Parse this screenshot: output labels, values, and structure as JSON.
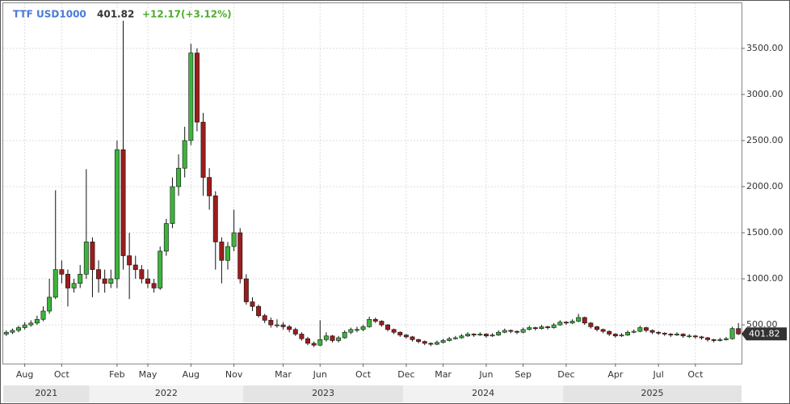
{
  "chart_data": {
    "type": "candlestick",
    "symbol": "TTF USD1000",
    "last": 401.82,
    "change_label": "+12.17(+3.12%)",
    "up_color": "#3cb43c",
    "down_color": "#9c1d1d",
    "ylim": [
      80,
      3990
    ],
    "yticks": [
      {
        "value": 500,
        "label": "500.00"
      },
      {
        "value": 1000,
        "label": "1000.00"
      },
      {
        "value": 1500,
        "label": "1500.00"
      },
      {
        "value": 2000,
        "label": "2000.00"
      },
      {
        "value": 2500,
        "label": "2500.00"
      },
      {
        "value": 3000,
        "label": "3000.00"
      },
      {
        "value": 3500,
        "label": "3500.00"
      }
    ],
    "grid": true,
    "years": [
      {
        "label": "2021",
        "value": 0
      },
      {
        "label": "2022",
        "value": 14
      },
      {
        "label": "2023",
        "value": 39
      },
      {
        "label": "2024",
        "value": 65
      },
      {
        "label": "2025",
        "value": 91
      }
    ],
    "categories": [
      null,
      null,
      null,
      "Aug",
      null,
      null,
      null,
      null,
      null,
      "Oct",
      null,
      null,
      null,
      null,
      null,
      null,
      null,
      null,
      "Feb",
      null,
      null,
      null,
      null,
      "May",
      null,
      null,
      null,
      null,
      null,
      null,
      "Aug",
      null,
      null,
      null,
      null,
      null,
      null,
      "Nov",
      null,
      null,
      null,
      null,
      null,
      null,
      null,
      "Mar",
      null,
      null,
      null,
      null,
      null,
      "Jun",
      null,
      null,
      null,
      null,
      null,
      null,
      "Oct",
      null,
      null,
      null,
      null,
      null,
      null,
      "Dec",
      null,
      null,
      null,
      null,
      null,
      "Mar",
      null,
      null,
      null,
      null,
      null,
      null,
      "Jun",
      null,
      null,
      null,
      null,
      null,
      "Sep",
      null,
      null,
      null,
      null,
      null,
      null,
      "Dec",
      null,
      null,
      null,
      null,
      null,
      null,
      null,
      "Apr",
      null,
      null,
      null,
      null,
      null,
      null,
      "Jul",
      null,
      null,
      null,
      null,
      null,
      "Oct",
      null,
      null,
      null,
      null,
      null,
      null,
      null
    ],
    "candles": [
      [
        400,
        440,
        380,
        420
      ],
      [
        420,
        460,
        400,
        440
      ],
      [
        440,
        490,
        420,
        470
      ],
      [
        470,
        530,
        450,
        500
      ],
      [
        500,
        550,
        480,
        520
      ],
      [
        520,
        600,
        500,
        560
      ],
      [
        560,
        700,
        540,
        650
      ],
      [
        650,
        1000,
        620,
        800
      ],
      [
        800,
        1960,
        780,
        1100
      ],
      [
        1100,
        1200,
        950,
        1050
      ],
      [
        1050,
        1100,
        700,
        900
      ],
      [
        900,
        1000,
        850,
        950
      ],
      [
        950,
        1150,
        900,
        1050
      ],
      [
        1050,
        2190,
        1000,
        1400
      ],
      [
        1400,
        1450,
        800,
        1100
      ],
      [
        1100,
        1200,
        850,
        1000
      ],
      [
        1000,
        1100,
        850,
        950
      ],
      [
        950,
        1100,
        900,
        1000
      ],
      [
        1000,
        2500,
        900,
        2400
      ],
      [
        2400,
        3800,
        1100,
        1250
      ],
      [
        1250,
        1500,
        780,
        1150
      ],
      [
        1150,
        1250,
        1000,
        1100
      ],
      [
        1100,
        1150,
        950,
        1000
      ],
      [
        1000,
        1100,
        900,
        950
      ],
      [
        950,
        1000,
        850,
        900
      ],
      [
        900,
        1350,
        880,
        1300
      ],
      [
        1300,
        1650,
        1250,
        1600
      ],
      [
        1600,
        2100,
        1550,
        2000
      ],
      [
        2000,
        2350,
        1900,
        2200
      ],
      [
        2200,
        2650,
        2100,
        2500
      ],
      [
        2500,
        3550,
        2450,
        3450
      ],
      [
        3450,
        3500,
        2600,
        2700
      ],
      [
        2700,
        2800,
        1900,
        2100
      ],
      [
        2100,
        2200,
        1750,
        1900
      ],
      [
        1900,
        1950,
        1100,
        1400
      ],
      [
        1400,
        1450,
        950,
        1200
      ],
      [
        1200,
        1400,
        1100,
        1350
      ],
      [
        1350,
        1750,
        1300,
        1500
      ],
      [
        1500,
        1550,
        950,
        1000
      ],
      [
        1000,
        1050,
        720,
        750
      ],
      [
        750,
        800,
        650,
        700
      ],
      [
        700,
        720,
        580,
        600
      ],
      [
        600,
        620,
        520,
        550
      ],
      [
        550,
        580,
        470,
        500
      ],
      [
        500,
        560,
        470,
        500
      ],
      [
        500,
        530,
        450,
        480
      ],
      [
        480,
        500,
        420,
        450
      ],
      [
        450,
        470,
        380,
        400
      ],
      [
        400,
        420,
        330,
        350
      ],
      [
        350,
        370,
        280,
        300
      ],
      [
        300,
        320,
        260,
        280
      ],
      [
        280,
        550,
        270,
        340
      ],
      [
        340,
        420,
        320,
        380
      ],
      [
        380,
        390,
        310,
        330
      ],
      [
        330,
        380,
        310,
        360
      ],
      [
        360,
        440,
        350,
        420
      ],
      [
        420,
        470,
        400,
        450
      ],
      [
        450,
        480,
        420,
        450
      ],
      [
        450,
        500,
        430,
        480
      ],
      [
        480,
        590,
        470,
        560
      ],
      [
        560,
        580,
        520,
        540
      ],
      [
        540,
        550,
        480,
        500
      ],
      [
        500,
        510,
        430,
        450
      ],
      [
        450,
        460,
        400,
        420
      ],
      [
        420,
        430,
        370,
        390
      ],
      [
        390,
        400,
        350,
        370
      ],
      [
        370,
        380,
        320,
        340
      ],
      [
        340,
        350,
        300,
        320
      ],
      [
        320,
        330,
        280,
        300
      ],
      [
        300,
        310,
        270,
        290
      ],
      [
        290,
        330,
        280,
        310
      ],
      [
        310,
        350,
        300,
        330
      ],
      [
        330,
        370,
        320,
        350
      ],
      [
        350,
        380,
        340,
        360
      ],
      [
        360,
        400,
        350,
        380
      ],
      [
        380,
        420,
        370,
        400
      ],
      [
        400,
        410,
        370,
        390
      ],
      [
        390,
        420,
        380,
        400
      ],
      [
        400,
        410,
        360,
        380
      ],
      [
        380,
        410,
        370,
        390
      ],
      [
        390,
        440,
        380,
        420
      ],
      [
        420,
        460,
        410,
        440
      ],
      [
        440,
        450,
        410,
        430
      ],
      [
        430,
        440,
        400,
        420
      ],
      [
        420,
        470,
        410,
        450
      ],
      [
        450,
        490,
        440,
        470
      ],
      [
        470,
        480,
        440,
        460
      ],
      [
        460,
        500,
        450,
        480
      ],
      [
        480,
        490,
        450,
        470
      ],
      [
        470,
        520,
        460,
        500
      ],
      [
        500,
        550,
        490,
        530
      ],
      [
        530,
        540,
        500,
        520
      ],
      [
        520,
        560,
        510,
        540
      ],
      [
        540,
        620,
        530,
        580
      ],
      [
        580,
        590,
        500,
        520
      ],
      [
        520,
        530,
        460,
        480
      ],
      [
        480,
        490,
        430,
        450
      ],
      [
        450,
        460,
        410,
        430
      ],
      [
        430,
        440,
        380,
        400
      ],
      [
        400,
        410,
        360,
        380
      ],
      [
        380,
        410,
        370,
        390
      ],
      [
        390,
        440,
        380,
        420
      ],
      [
        420,
        450,
        410,
        430
      ],
      [
        430,
        490,
        420,
        470
      ],
      [
        470,
        480,
        420,
        440
      ],
      [
        440,
        450,
        400,
        420
      ],
      [
        420,
        430,
        390,
        410
      ],
      [
        410,
        420,
        380,
        400
      ],
      [
        400,
        410,
        370,
        390
      ],
      [
        390,
        420,
        380,
        400
      ],
      [
        400,
        410,
        360,
        380
      ],
      [
        380,
        400,
        360,
        380
      ],
      [
        380,
        390,
        350,
        370
      ],
      [
        370,
        380,
        340,
        360
      ],
      [
        360,
        370,
        320,
        340
      ],
      [
        340,
        350,
        310,
        330
      ],
      [
        330,
        360,
        320,
        340
      ],
      [
        340,
        370,
        330,
        350
      ],
      [
        350,
        480,
        340,
        460
      ],
      [
        460,
        520,
        390,
        401.82
      ]
    ]
  }
}
